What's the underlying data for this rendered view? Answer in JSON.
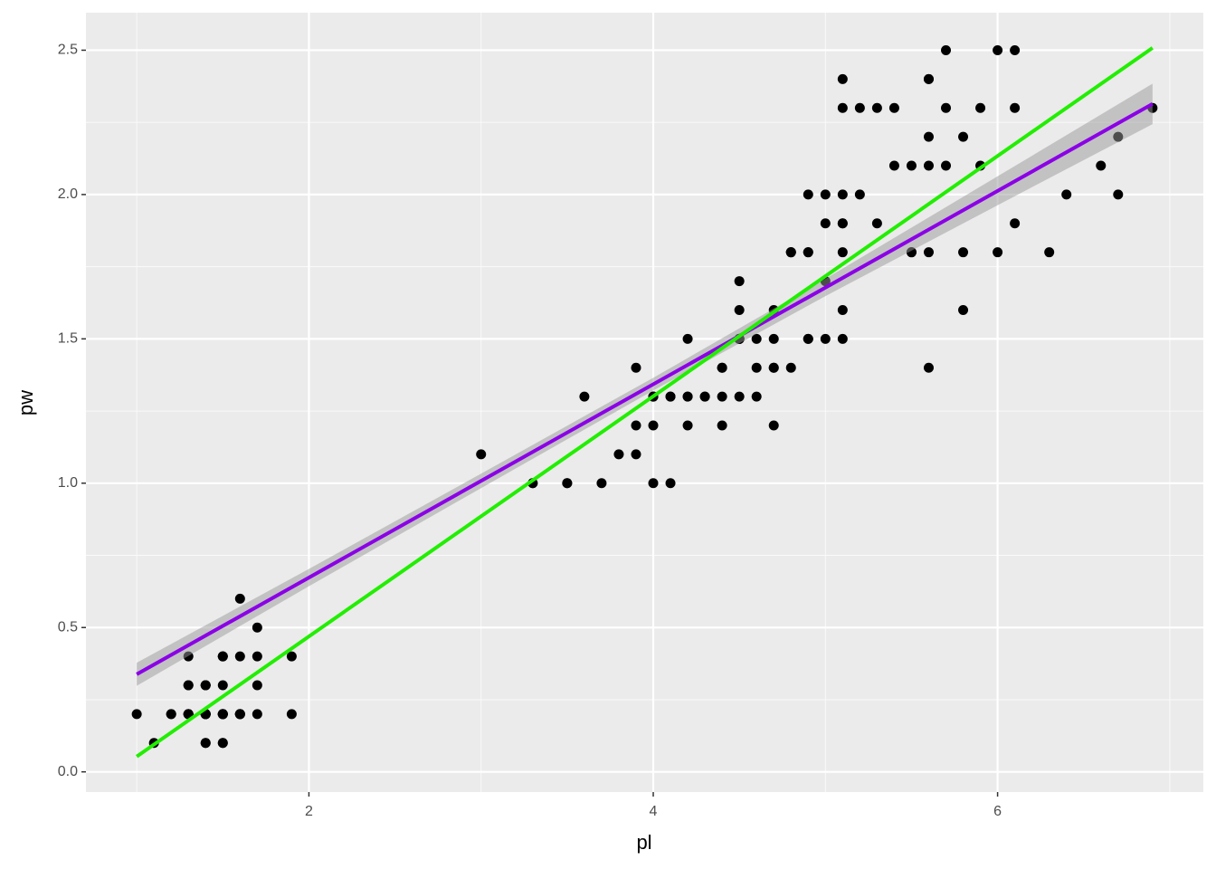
{
  "chart_data": {
    "type": "scatter",
    "x_label": "pl",
    "y_label": "pw",
    "xlim": [
      0.705,
      7.195
    ],
    "ylim": [
      -0.07,
      2.63
    ],
    "xticks": [
      2,
      4,
      6
    ],
    "yticks": [
      {
        "value": 0,
        "label": "0.0"
      },
      {
        "value": 0.5,
        "label": "0.5"
      },
      {
        "value": 1,
        "label": "1.0"
      },
      {
        "value": 1.5,
        "label": "1.5"
      },
      {
        "value": 2,
        "label": "2.0"
      },
      {
        "value": 2.5,
        "label": "2.5"
      }
    ],
    "xminor": [
      1,
      3,
      5,
      7
    ],
    "yminor": [
      0.25,
      0.75,
      1.25,
      1.75,
      2.25
    ],
    "grid": true,
    "point_color": "#000000",
    "x": [
      1.4,
      1.4,
      1.3,
      1.5,
      1.4,
      1.7,
      1.4,
      1.5,
      1.4,
      1.5,
      1.5,
      1.6,
      1.4,
      1.1,
      1.2,
      1.5,
      1.3,
      1.4,
      1.7,
      1.5,
      1.7,
      1.5,
      1.0,
      1.7,
      1.9,
      1.6,
      1.6,
      1.5,
      1.4,
      1.6,
      1.6,
      1.5,
      1.5,
      1.4,
      1.5,
      1.2,
      1.3,
      1.4,
      1.3,
      1.5,
      1.3,
      1.3,
      1.3,
      1.6,
      1.9,
      1.4,
      1.6,
      1.4,
      1.5,
      1.4,
      4.7,
      4.5,
      4.9,
      4.0,
      4.6,
      4.5,
      4.7,
      3.3,
      4.6,
      3.9,
      3.5,
      4.2,
      4.0,
      4.7,
      3.6,
      4.4,
      4.5,
      4.1,
      4.5,
      3.9,
      4.8,
      4.0,
      4.9,
      4.7,
      4.3,
      4.4,
      4.8,
      5.0,
      4.5,
      3.5,
      3.8,
      3.7,
      3.9,
      5.1,
      4.5,
      4.5,
      4.7,
      4.4,
      4.1,
      4.0,
      4.4,
      4.6,
      4.0,
      3.3,
      4.2,
      4.2,
      4.2,
      4.3,
      3.0,
      4.1,
      6.0,
      5.1,
      5.9,
      5.6,
      5.8,
      6.6,
      4.5,
      6.3,
      5.8,
      6.1,
      5.1,
      5.3,
      5.5,
      5.0,
      5.1,
      5.3,
      5.5,
      6.7,
      6.9,
      5.0,
      5.7,
      4.9,
      6.7,
      4.9,
      5.7,
      6.0,
      4.8,
      4.9,
      5.6,
      5.8,
      6.1,
      6.4,
      5.6,
      5.1,
      5.6,
      6.1,
      5.6,
      5.5,
      4.8,
      5.4,
      5.6,
      5.1,
      5.1,
      5.9,
      5.7,
      5.2,
      5.0,
      5.2,
      5.4,
      5.1
    ],
    "y": [
      0.2,
      0.2,
      0.2,
      0.2,
      0.2,
      0.4,
      0.3,
      0.2,
      0.2,
      0.1,
      0.2,
      0.2,
      0.1,
      0.1,
      0.2,
      0.4,
      0.4,
      0.3,
      0.3,
      0.3,
      0.2,
      0.4,
      0.2,
      0.5,
      0.2,
      0.2,
      0.4,
      0.2,
      0.2,
      0.2,
      0.2,
      0.4,
      0.1,
      0.2,
      0.2,
      0.2,
      0.2,
      0.1,
      0.2,
      0.2,
      0.3,
      0.3,
      0.2,
      0.6,
      0.4,
      0.3,
      0.2,
      0.2,
      0.2,
      0.2,
      1.4,
      1.5,
      1.5,
      1.3,
      1.5,
      1.3,
      1.6,
      1.0,
      1.3,
      1.4,
      1.0,
      1.5,
      1.0,
      1.4,
      1.3,
      1.4,
      1.5,
      1.0,
      1.5,
      1.1,
      1.8,
      1.3,
      1.5,
      1.2,
      1.3,
      1.4,
      1.4,
      1.7,
      1.5,
      1.0,
      1.1,
      1.0,
      1.2,
      1.6,
      1.5,
      1.6,
      1.5,
      1.3,
      1.3,
      1.3,
      1.2,
      1.4,
      1.2,
      1.0,
      1.3,
      1.2,
      1.3,
      1.3,
      1.1,
      1.3,
      2.5,
      1.9,
      2.1,
      1.8,
      2.2,
      2.1,
      1.7,
      1.8,
      1.8,
      2.5,
      2.0,
      1.9,
      2.1,
      2.0,
      2.4,
      2.3,
      1.8,
      2.2,
      2.3,
      1.5,
      2.3,
      2.0,
      2.0,
      1.8,
      2.1,
      1.8,
      1.8,
      1.8,
      2.1,
      1.6,
      1.9,
      2.0,
      2.2,
      1.5,
      1.4,
      2.3,
      2.4,
      1.8,
      1.8,
      2.1,
      2.4,
      2.3,
      1.9,
      2.3,
      2.5,
      2.3,
      1.9,
      2.0,
      2.3,
      1.8
    ],
    "band": {
      "color": "#999999",
      "x": [
        1,
        2,
        3,
        4,
        5,
        6,
        6.9
      ],
      "lower": [
        0.298,
        0.643,
        0.983,
        1.321,
        1.648,
        1.963,
        2.244
      ],
      "upper": [
        0.378,
        0.703,
        1.033,
        1.365,
        1.708,
        2.063,
        2.384
      ]
    },
    "lines": [
      {
        "color": "#8b00e6",
        "x": [
          1,
          6.9
        ],
        "y": [
          0.338,
          2.314
        ]
      },
      {
        "color": "#22ee00",
        "x": [
          1,
          6.9
        ],
        "y": [
          0.053,
          2.508
        ]
      }
    ]
  }
}
